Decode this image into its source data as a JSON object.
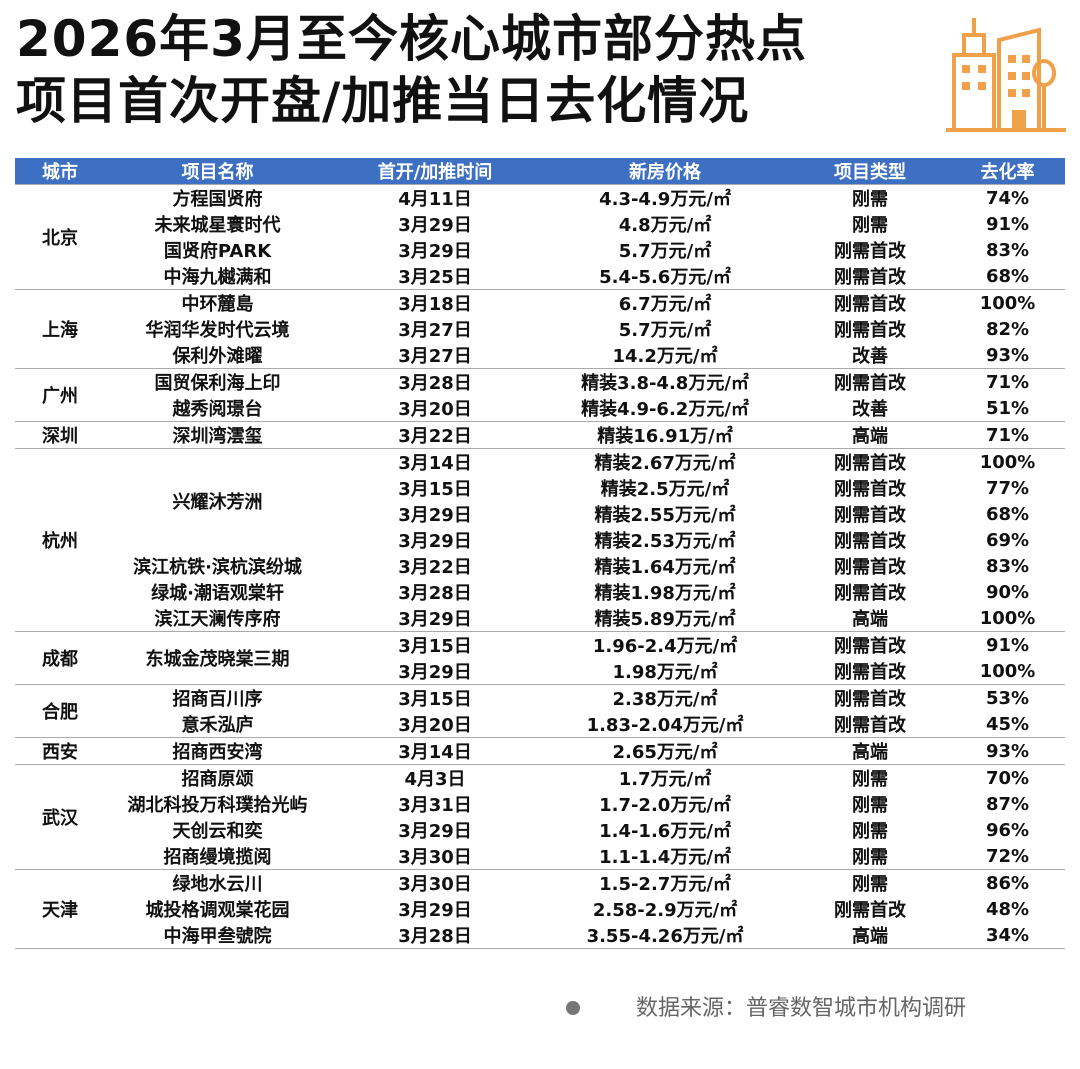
{
  "header": {
    "title_line1": "2026年3月至今核心城市部分热点",
    "title_line2": "项目首次开盘/加推当日去化情况"
  },
  "table": {
    "columns": [
      "城市",
      "项目名称",
      "首开/加推时间",
      "新房价格",
      "项目类型",
      "去化率"
    ],
    "groups": [
      {
        "city": "北京",
        "projects": [
          {
            "name": "方程国贤府",
            "launches": [
              {
                "time": "4月11日",
                "price": "4.3-4.9万元/㎡",
                "type": "刚需",
                "rate": "74%"
              }
            ]
          },
          {
            "name": "未来城星寰时代",
            "launches": [
              {
                "time": "3月29日",
                "price": "4.8万元/㎡",
                "type": "刚需",
                "rate": "91%"
              }
            ]
          },
          {
            "name": "国贤府PARK",
            "launches": [
              {
                "time": "3月29日",
                "price": "5.7万元/㎡",
                "type": "刚需首改",
                "rate": "83%"
              }
            ]
          },
          {
            "name": "中海九樾满和",
            "launches": [
              {
                "time": "3月25日",
                "price": "5.4-5.6万元/㎡",
                "type": "刚需首改",
                "rate": "68%"
              }
            ]
          }
        ]
      },
      {
        "city": "上海",
        "projects": [
          {
            "name": "中环麓島",
            "launches": [
              {
                "time": "3月18日",
                "price": "6.7万元/㎡",
                "type": "刚需首改",
                "rate": "100%"
              }
            ]
          },
          {
            "name": "华润华发时代云境",
            "launches": [
              {
                "time": "3月27日",
                "price": "5.7万元/㎡",
                "type": "刚需首改",
                "rate": "82%"
              }
            ]
          },
          {
            "name": "保利外滩曜",
            "launches": [
              {
                "time": "3月27日",
                "price": "14.2万元/㎡",
                "type": "改善",
                "rate": "93%"
              }
            ]
          }
        ]
      },
      {
        "city": "广州",
        "projects": [
          {
            "name": "国贸保利海上印",
            "launches": [
              {
                "time": "3月28日",
                "price": "精装3.8-4.8万元/㎡",
                "type": "刚需首改",
                "rate": "71%"
              }
            ]
          },
          {
            "name": "越秀阅璟台",
            "launches": [
              {
                "time": "3月20日",
                "price": "精装4.9-6.2万元/㎡",
                "type": "改善",
                "rate": "51%"
              }
            ]
          }
        ]
      },
      {
        "city": "深圳",
        "projects": [
          {
            "name": "深圳湾澐玺",
            "launches": [
              {
                "time": "3月22日",
                "price": "精装16.91万/㎡",
                "type": "高端",
                "rate": "71%"
              }
            ]
          }
        ]
      },
      {
        "city": "杭州",
        "projects": [
          {
            "name": "兴耀沐芳洲",
            "launches": [
              {
                "time": "3月14日",
                "price": "精装2.67万元/㎡",
                "type": "刚需首改",
                "rate": "100%"
              },
              {
                "time": "3月15日",
                "price": "精装2.5万元/㎡",
                "type": "刚需首改",
                "rate": "77%"
              },
              {
                "time": "3月29日",
                "price": "精装2.55万元/㎡",
                "type": "刚需首改",
                "rate": "68%"
              },
              {
                "time": "3月29日",
                "price": "精装2.53万元/㎡",
                "type": "刚需首改",
                "rate": "69%"
              }
            ]
          },
          {
            "name": "滨江杭铁·滨杭滨纷城",
            "launches": [
              {
                "time": "3月22日",
                "price": "精装1.64万元/㎡",
                "type": "刚需首改",
                "rate": "83%"
              }
            ]
          },
          {
            "name": "绿城·潮语观棠轩",
            "launches": [
              {
                "time": "3月28日",
                "price": "精装1.98万元/㎡",
                "type": "刚需首改",
                "rate": "90%"
              }
            ]
          },
          {
            "name": "滨江天澜传序府",
            "launches": [
              {
                "time": "3月29日",
                "price": "精装5.89万元/㎡",
                "type": "高端",
                "rate": "100%"
              }
            ]
          }
        ]
      },
      {
        "city": "成都",
        "projects": [
          {
            "name": "东城金茂晓棠三期",
            "launches": [
              {
                "time": "3月15日",
                "price": "1.96-2.4万元/㎡",
                "type": "刚需首改",
                "rate": "91%"
              },
              {
                "time": "3月29日",
                "price": "1.98万元/㎡",
                "type": "刚需首改",
                "rate": "100%"
              }
            ]
          }
        ]
      },
      {
        "city": "合肥",
        "projects": [
          {
            "name": "招商百川序",
            "launches": [
              {
                "time": "3月15日",
                "price": "2.38万元/㎡",
                "type": "刚需首改",
                "rate": "53%"
              }
            ]
          },
          {
            "name": "意禾泓庐",
            "launches": [
              {
                "time": "3月20日",
                "price": "1.83-2.04万元/㎡",
                "type": "刚需首改",
                "rate": "45%"
              }
            ]
          }
        ]
      },
      {
        "city": "西安",
        "projects": [
          {
            "name": "招商西安湾",
            "launches": [
              {
                "time": "3月14日",
                "price": "2.65万元/㎡",
                "type": "高端",
                "rate": "93%"
              }
            ]
          }
        ]
      },
      {
        "city": "武汉",
        "projects": [
          {
            "name": "招商原颂",
            "launches": [
              {
                "time": "4月3日",
                "price": "1.7万元/㎡",
                "type": "刚需",
                "rate": "70%"
              }
            ]
          },
          {
            "name": "湖北科投万科璞拾光屿",
            "launches": [
              {
                "time": "3月31日",
                "price": "1.7-2.0万元/㎡",
                "type": "刚需",
                "rate": "87%"
              }
            ]
          },
          {
            "name": "天创云和奕",
            "launches": [
              {
                "time": "3月29日",
                "price": "1.4-1.6万元/㎡",
                "type": "刚需",
                "rate": "96%"
              }
            ]
          },
          {
            "name": "招商缦境揽阅",
            "launches": [
              {
                "time": "3月30日",
                "price": "1.1-1.4万元/㎡",
                "type": "刚需",
                "rate": "72%"
              }
            ]
          }
        ]
      },
      {
        "city": "天津",
        "projects": [
          {
            "name": "绿地水云川",
            "launches": [
              {
                "time": "3月30日",
                "price": "1.5-2.7万元/㎡",
                "type": "刚需",
                "rate": "86%"
              }
            ]
          },
          {
            "name": "城投格调观棠花园",
            "launches": [
              {
                "time": "3月29日",
                "price": "2.58-2.9万元/㎡",
                "type": "刚需首改",
                "rate": "48%"
              }
            ]
          },
          {
            "name": "中海甲叁號院",
            "launches": [
              {
                "time": "3月28日",
                "price": "3.55-4.26万元/㎡",
                "type": "高端",
                "rate": "34%"
              }
            ]
          }
        ]
      }
    ]
  },
  "footer": {
    "source": "数据来源：普睿数智城市机构调研"
  }
}
